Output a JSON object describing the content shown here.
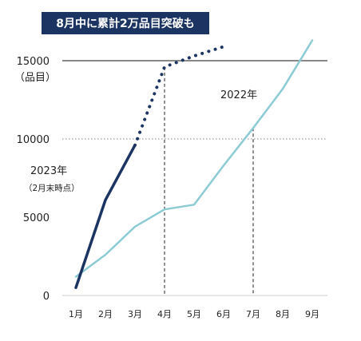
{
  "chart_data": {
    "type": "line",
    "title": "8月中に累計2万品目突破も",
    "ylabel": "（品目）",
    "ylim": [
      0,
      15000
    ],
    "yticks": [
      0,
      5000,
      10000,
      15000
    ],
    "categories": [
      "1月",
      "2月",
      "3月",
      "4月",
      "5月",
      "6月",
      "7月",
      "8月",
      "9月"
    ],
    "series": [
      {
        "name": "2022年",
        "color": "#8ccbd3",
        "x": [
          "1月",
          "2月",
          "3月",
          "4月",
          "5月",
          "6月",
          "7月",
          "8月",
          "9月"
        ],
        "values": [
          1200,
          2600,
          4400,
          5500,
          5800,
          8300,
          10700,
          13200,
          16300
        ]
      },
      {
        "name": "2023年",
        "sublabel": "（2月末時点）",
        "color": "#1c3461",
        "x": [
          "1月",
          "2月",
          "3月"
        ],
        "values": [
          500,
          6100,
          9600
        ]
      },
      {
        "name": "",
        "color": "#1c3461",
        "style": "dotted",
        "x": [
          "3月",
          "4月",
          "5月",
          "6月"
        ],
        "values": [
          9600,
          14600,
          15300,
          15900
        ]
      }
    ],
    "reference_lines": [
      {
        "y": 15000,
        "style": "solid",
        "color": "#888888"
      },
      {
        "y": 10000,
        "style": "dotted",
        "color": "#888888"
      }
    ],
    "vertical_markers": [
      {
        "x": "4月",
        "y": 14600
      },
      {
        "x": "7月",
        "y": 10700
      }
    ],
    "annotations": {
      "label_2022": "2022年",
      "label_2023": "2023年",
      "label_2023_note": "（2月末時点）"
    },
    "colors": {
      "title_bg": "#1c3461"
    }
  }
}
